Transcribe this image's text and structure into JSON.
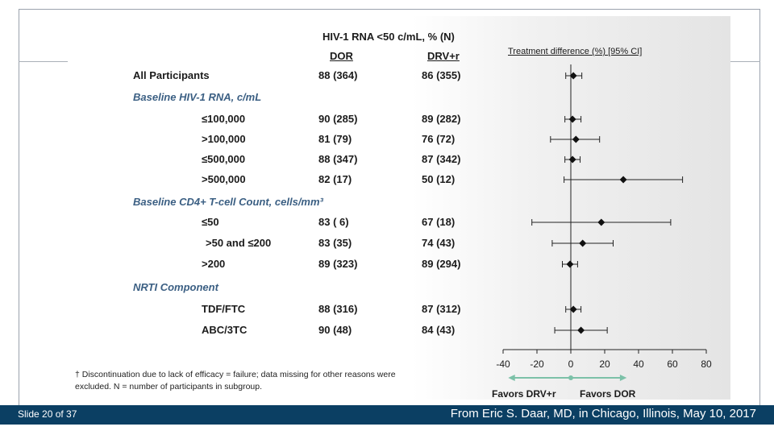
{
  "slide": {
    "number": "Slide 20 of 37",
    "credit": "From Eric S. Daar, MD, in Chicago, Illinois, May 10, 2017"
  },
  "table": {
    "header_main": "HIV-1 RNA <50 c/mL, % (N)",
    "col_dor": "DOR",
    "col_drv": "DRV+r"
  },
  "rows": [
    {
      "label": "All Participants",
      "kind": "row",
      "dor": "88 (364)",
      "drv": "86 (355)"
    },
    {
      "label": "Baseline HIV-1 RNA, c/mL",
      "kind": "category"
    },
    {
      "label": "≤100,000",
      "kind": "row",
      "dor": "90 (285)",
      "drv": "89 (282)"
    },
    {
      "label": ">100,000",
      "kind": "row",
      "dor": "81 (79)",
      "drv": "76 (72)"
    },
    {
      "label": "≤500,000",
      "kind": "row",
      "dor": "88 (347)",
      "drv": "87 (342)"
    },
    {
      "label": ">500,000",
      "kind": "row",
      "dor": "82 (17)",
      "drv": "50 (12)"
    },
    {
      "label": "Baseline CD4+ T-cell Count, cells/mm³",
      "kind": "category"
    },
    {
      "label": "≤50",
      "kind": "row",
      "dor": "83 ( 6)",
      "drv": "67 (18)"
    },
    {
      "label": ">50 and ≤200",
      "kind": "row",
      "dor": "83 (35)",
      "drv": "74 (43)"
    },
    {
      "label": ">200",
      "kind": "row",
      "dor": "89 (323)",
      "drv": "89 (294)"
    },
    {
      "label": "NRTI Component",
      "kind": "category"
    },
    {
      "label": "TDF/FTC",
      "kind": "row",
      "dor": "88 (316)",
      "drv": "87 (312)"
    },
    {
      "label": "ABC/3TC",
      "kind": "row",
      "dor": "90 (48)",
      "drv": "84 (43)"
    }
  ],
  "chart_data": {
    "type": "forest",
    "title": "Treatment difference (%) [95% CI]",
    "xlim": [
      -40,
      80
    ],
    "xticks": [
      "-40",
      "-20",
      "0",
      "20",
      "40",
      "60",
      "80"
    ],
    "reference_line": 0,
    "points": [
      {
        "row": "All Participants",
        "estimate": 1.5,
        "low": -3,
        "high": 6.5
      },
      {
        "row": "≤100,000",
        "estimate": 1,
        "low": -3.5,
        "high": 6
      },
      {
        "row": ">100,000",
        "estimate": 3,
        "low": -12,
        "high": 17
      },
      {
        "row": "≤500,000",
        "estimate": 1,
        "low": -3.5,
        "high": 5.5
      },
      {
        "row": ">500,000",
        "estimate": 31,
        "low": -4,
        "high": 66
      },
      {
        "row": "≤50",
        "estimate": 18,
        "low": -23,
        "high": 59
      },
      {
        "row": ">50 and ≤200",
        "estimate": 7,
        "low": -11,
        "high": 25
      },
      {
        "row": ">200",
        "estimate": -0.5,
        "low": -5,
        "high": 4
      },
      {
        "row": "TDF/FTC",
        "estimate": 1.5,
        "low": -3,
        "high": 6
      },
      {
        "row": "ABC/3TC",
        "estimate": 6,
        "low": -9.5,
        "high": 21.5
      }
    ],
    "legend_left": "Favors DRV+r",
    "legend_right": "Favors DOR",
    "arrow_color": "#7cc1a8"
  },
  "footnote": {
    "line1": "† Discontinuation due to lack of efficacy = failure; data missing for other reasons were",
    "line2": "excluded.   N = number of participants in subgroup."
  }
}
